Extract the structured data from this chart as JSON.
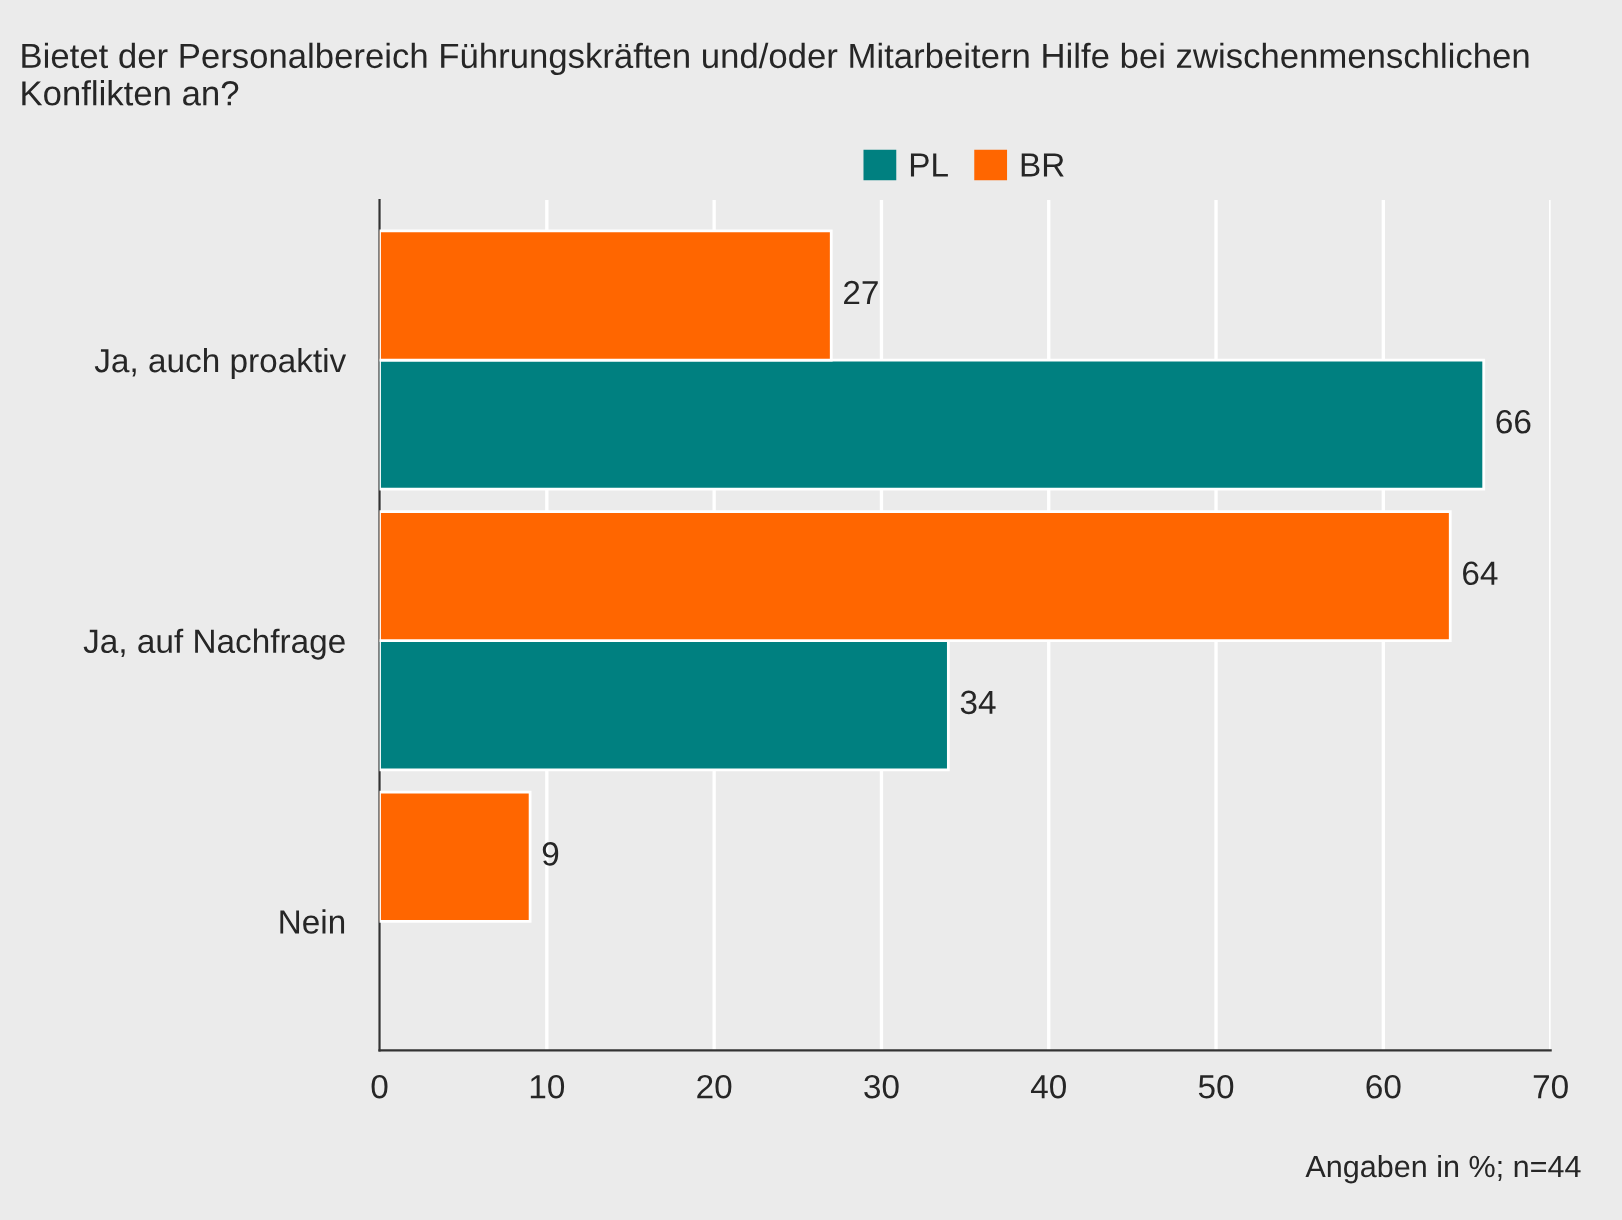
{
  "chart_data": {
    "type": "bar",
    "orientation": "horizontal",
    "title": "Bietet der Personalbereich Führungskräften und/oder Mitarbeitern Hilfe bei zwischenmenschlichen Konflikten an?",
    "categories": [
      "Ja, auch proaktiv",
      "Ja, auf Nachfrage",
      "Nein"
    ],
    "series": [
      {
        "name": "PL",
        "color": "#008080",
        "values": [
          66,
          34,
          null
        ]
      },
      {
        "name": "BR",
        "color": "#ff6600",
        "values": [
          27,
          64,
          9
        ]
      }
    ],
    "xlim": [
      0,
      70
    ],
    "xticks": [
      0,
      10,
      20,
      30,
      40,
      50,
      60,
      70
    ],
    "grid": "x",
    "legend": "top",
    "data_labels": true,
    "annotations": [
      "Angaben in %; n=44"
    ]
  }
}
